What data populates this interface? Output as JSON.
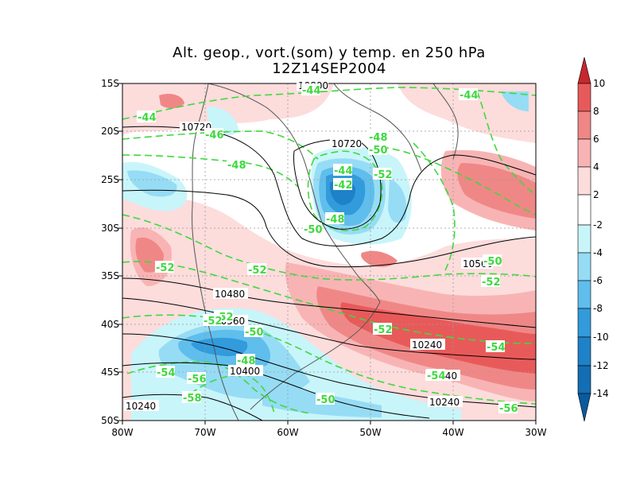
{
  "title": {
    "line1": "Alt. geop., vort.(som) y temp. en 250 hPa",
    "line2": "12Z14SEP2004"
  },
  "map": {
    "lat_ticks": [
      "15S",
      "20S",
      "25S",
      "30S",
      "35S",
      "40S",
      "45S",
      "50S"
    ],
    "lon_ticks": [
      "80W",
      "70W",
      "60W",
      "50W",
      "40W",
      "30W"
    ],
    "grid": true
  },
  "colorbar": {
    "levels": [
      "10",
      "8",
      "6",
      "4",
      "2",
      "-2",
      "-4",
      "-6",
      "-8",
      "-10",
      "-12",
      "-14"
    ],
    "colors": [
      "#c8282d",
      "#e85a5a",
      "#f08787",
      "#f8b4b4",
      "#fddcdc",
      "#ffffff",
      "#c8f5fa",
      "#96dcf5",
      "#5fbeec",
      "#329bdc",
      "#1e82c8",
      "#146eb4",
      "#0a5a9c"
    ]
  },
  "geopotential_labels": [
    "10800",
    "10720",
    "10720",
    "10560",
    "10480",
    "10560",
    "10240",
    "10400",
    "10240",
    "10240"
  ],
  "temperature_labels": [
    "-44",
    "-44",
    "-44",
    "-46",
    "-48",
    "-48",
    "-50",
    "-52",
    "-44",
    "-42",
    "-48",
    "-50",
    "-52",
    "-52",
    "-50",
    "-52",
    "-52",
    "-50",
    "-52",
    "-52",
    "-54",
    "-48",
    "-56",
    "-54",
    "-58",
    "-50",
    "-54",
    "-56",
    "-50"
  ],
  "colors": {
    "temperature_contour": "#3fd93f",
    "geopotential_contour": "#000000",
    "coastline": "#555555"
  }
}
